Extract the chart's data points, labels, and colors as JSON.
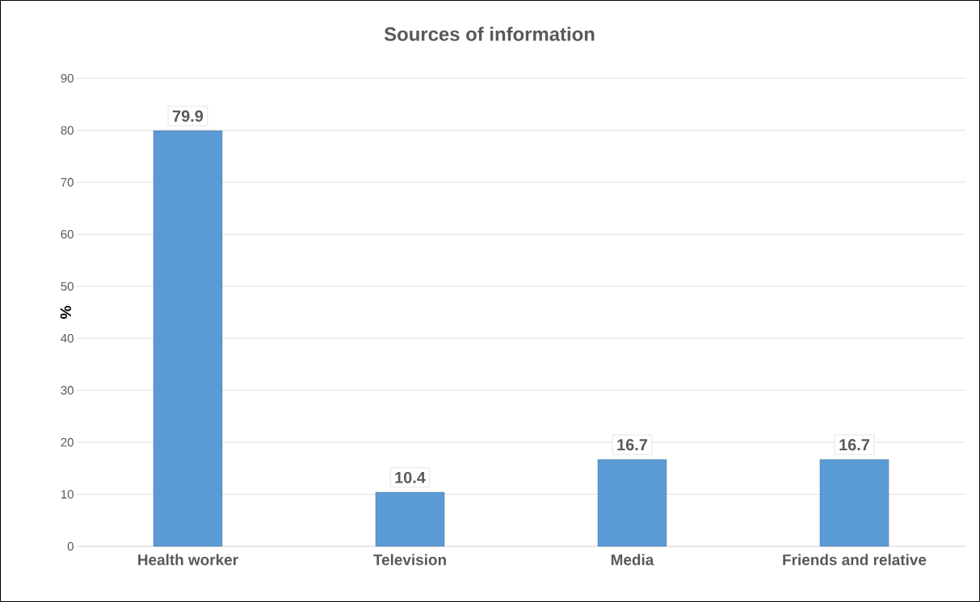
{
  "chart_data": {
    "type": "bar",
    "title": "Sources of information",
    "ylabel": "%",
    "categories": [
      "Health worker",
      "Television",
      "Media",
      "Friends and relative"
    ],
    "values": [
      79.9,
      10.4,
      16.7,
      16.7
    ],
    "color": "#5b9bd5",
    "ylim": [
      0,
      90
    ],
    "yticks": [
      0,
      10,
      20,
      30,
      40,
      50,
      60,
      70,
      80,
      90
    ],
    "grid": "y",
    "data_labels": true
  }
}
